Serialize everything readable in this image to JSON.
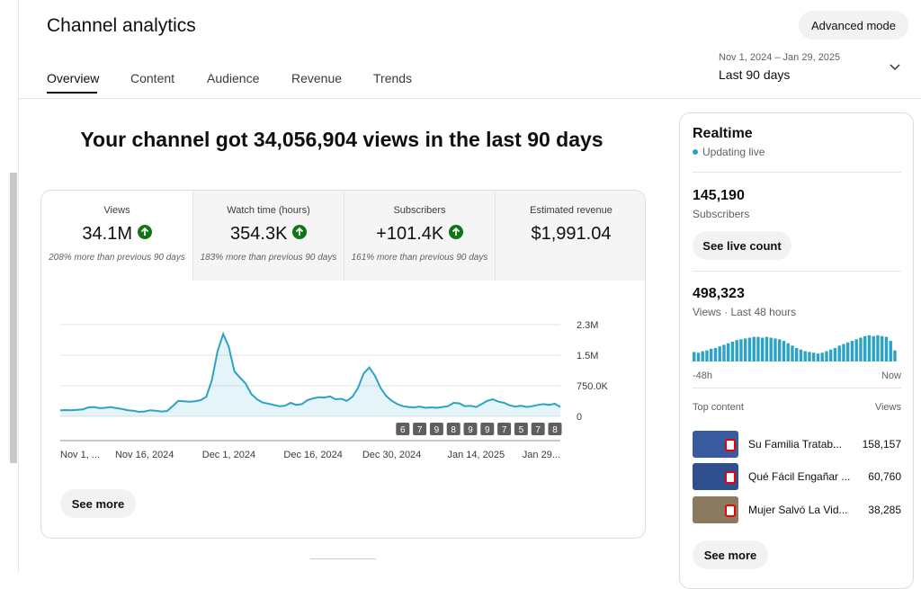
{
  "header": {
    "title": "Channel analytics",
    "advanced_button": "Advanced mode",
    "tabs": [
      "Overview",
      "Content",
      "Audience",
      "Revenue",
      "Trends"
    ],
    "date_range": "Nov 1, 2024 – Jan 29, 2025",
    "period": "Last 90 days"
  },
  "headline": "Your channel got 34,056,904 views in the last 90 days",
  "metrics": [
    {
      "label": "Views",
      "value": "34.1M",
      "note": "208% more than previous 90 days"
    },
    {
      "label": "Watch time (hours)",
      "value": "354.3K",
      "note": "183% more than previous 90 days"
    },
    {
      "label": "Subscribers",
      "value": "+101.4K",
      "note": "161% more than previous 90 days"
    },
    {
      "label": "Estimated revenue",
      "value": "$1,991.04"
    }
  ],
  "see_more": "See more",
  "chart_data": [
    {
      "type": "line",
      "color": "#2ba3c6",
      "categories": [
        "Nov 1, ...",
        null,
        null,
        null,
        null,
        null,
        null,
        null,
        null,
        null,
        null,
        null,
        null,
        null,
        null,
        "Nov 16, 2024",
        null,
        null,
        null,
        null,
        null,
        null,
        null,
        null,
        null,
        null,
        null,
        null,
        null,
        null,
        "Dec 1, 2024",
        null,
        null,
        null,
        null,
        null,
        null,
        null,
        null,
        null,
        null,
        null,
        null,
        null,
        null,
        "Dec 16, 2024",
        null,
        null,
        null,
        null,
        null,
        null,
        null,
        null,
        null,
        null,
        null,
        null,
        null,
        "Dec 30, 2024",
        null,
        null,
        null,
        null,
        null,
        null,
        null,
        null,
        null,
        null,
        null,
        null,
        null,
        null,
        "Jan 14, 2025",
        null,
        null,
        null,
        null,
        null,
        null,
        null,
        null,
        null,
        null,
        null,
        null,
        null,
        null,
        "Jan 29..."
      ],
      "values": [
        150000,
        155000,
        150000,
        160000,
        170000,
        220000,
        230000,
        200000,
        210000,
        230000,
        200000,
        180000,
        150000,
        140000,
        110000,
        120000,
        150000,
        140000,
        120000,
        130000,
        250000,
        380000,
        370000,
        360000,
        370000,
        400000,
        480000,
        900000,
        1600000,
        2020000,
        1700000,
        1100000,
        950000,
        800000,
        550000,
        420000,
        340000,
        310000,
        280000,
        250000,
        260000,
        330000,
        280000,
        300000,
        400000,
        440000,
        470000,
        460000,
        490000,
        420000,
        430000,
        380000,
        480000,
        700000,
        1050000,
        1200000,
        1000000,
        700000,
        500000,
        380000,
        300000,
        250000,
        230000,
        220000,
        240000,
        210000,
        220000,
        210000,
        230000,
        250000,
        330000,
        320000,
        250000,
        260000,
        230000,
        300000,
        380000,
        420000,
        360000,
        330000,
        270000,
        240000,
        260000,
        230000,
        250000,
        280000,
        300000,
        280000,
        310000,
        230000
      ],
      "ylim": [
        0,
        2250000
      ],
      "yticks": [
        0,
        {
          "value": 750000,
          "label": "750.0K"
        },
        {
          "value": 1500000,
          "label": "1.5M"
        },
        {
          "value": 2250000,
          "label": "2.3M"
        }
      ],
      "grid": true,
      "published_counts": [
        6,
        7,
        9,
        8,
        9,
        9,
        7,
        5,
        7,
        8
      ]
    },
    {
      "type": "bar",
      "color": "#2ba3c6",
      "x_start": "-48h",
      "x_end": "Now",
      "ylim": [
        0,
        17000
      ],
      "values": [
        6000,
        5500,
        6500,
        7000,
        8000,
        8500,
        9500,
        10500,
        11500,
        12500,
        13500,
        14000,
        14500,
        15000,
        15500,
        15500,
        15000,
        15500,
        15000,
        14500,
        14000,
        13000,
        11500,
        10000,
        8500,
        7500,
        6500,
        6000,
        5500,
        5000,
        5500,
        6500,
        7500,
        8500,
        10000,
        11000,
        12000,
        13000,
        14000,
        15000,
        16000,
        16500,
        16000,
        16500,
        16000,
        15500,
        13000,
        7000
      ]
    }
  ],
  "realtime": {
    "title": "Realtime",
    "status": "Updating live",
    "subscribers": "145,190",
    "subscribers_label": "Subscribers",
    "live_button": "See live count",
    "views": "498,323",
    "views_label": "Views · Last 48 hours",
    "top_content": "Top content",
    "views_header": "Views",
    "items": [
      {
        "title": "Su Familia Tratab...",
        "views": "158,157"
      },
      {
        "title": "Qué Fácil Engañar ...",
        "views": "60,760"
      },
      {
        "title": "Mujer Salvó La Vid...",
        "views": "38,285"
      }
    ],
    "see_more": "See more"
  }
}
